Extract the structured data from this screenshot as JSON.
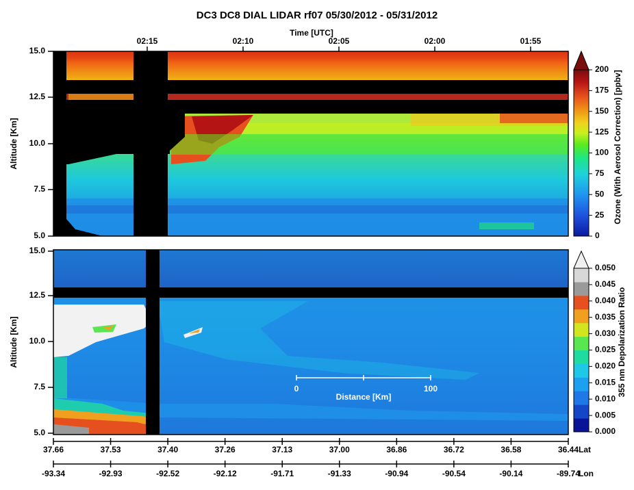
{
  "title": "DC3 DC8 DIAL LIDAR rf07 05/30/2012 - 05/31/2012",
  "chart_data": [
    {
      "type": "heatmap",
      "panel": "top",
      "xlabel_top": "Time [UTC]",
      "time_ticks": [
        "02:15",
        "02:10",
        "02:05",
        "02:00",
        "01:55"
      ],
      "ylabel": "Altitude [Km]",
      "yticks": [
        "5.0",
        "7.5",
        "10.0",
        "12.5",
        "15.0"
      ],
      "ylim": [
        5.0,
        15.0
      ],
      "colorbar": {
        "label": "Ozone (With Aerosol Correction) [ppbv]",
        "ticks": [
          "0",
          "25",
          "50",
          "75",
          "100",
          "125",
          "150",
          "175",
          "200"
        ],
        "range": [
          0,
          200
        ],
        "colors": [
          "#0a1aa0",
          "#1e50dc",
          "#1e96f0",
          "#1ed2dc",
          "#1ee682",
          "#5aeb1e",
          "#c8f01e",
          "#f0d21e",
          "#f09a14",
          "#e6501e",
          "#b41414",
          "#7a0e0e"
        ]
      }
    },
    {
      "type": "heatmap",
      "panel": "bottom",
      "ylabel": "Altitude [Km]",
      "yticks": [
        "5.0",
        "7.5",
        "10.0",
        "12.5",
        "15.0"
      ],
      "ylim": [
        5.0,
        15.0
      ],
      "colorbar": {
        "label": "355 nm Depolarization Ratio",
        "ticks": [
          "0.000",
          "0.005",
          "0.010",
          "0.015",
          "0.020",
          "0.025",
          "0.030",
          "0.035",
          "0.040",
          "0.045",
          "0.050"
        ],
        "range": [
          0.0,
          0.05
        ],
        "colors": [
          "#0a1496",
          "#1446c8",
          "#1e78e6",
          "#1ea0f0",
          "#1ec8e6",
          "#1edca0",
          "#5ae650",
          "#d2e61e",
          "#f0a01e",
          "#e6501e",
          "#9a9a9a",
          "#d8d8d8"
        ]
      },
      "scale_bar": {
        "label": "Distance [Km]",
        "start": "0",
        "end": "100"
      }
    }
  ],
  "lat_axis": {
    "label": "Lat",
    "ticks": [
      "37.66",
      "37.53",
      "37.40",
      "37.26",
      "37.13",
      "37.00",
      "36.86",
      "36.72",
      "36.58",
      "36.44"
    ]
  },
  "lon_axis": {
    "label": "Lon",
    "ticks": [
      "-93.34",
      "-92.93",
      "-92.52",
      "-92.12",
      "-91.71",
      "-91.33",
      "-90.94",
      "-90.54",
      "-90.14",
      "-89.74"
    ]
  }
}
